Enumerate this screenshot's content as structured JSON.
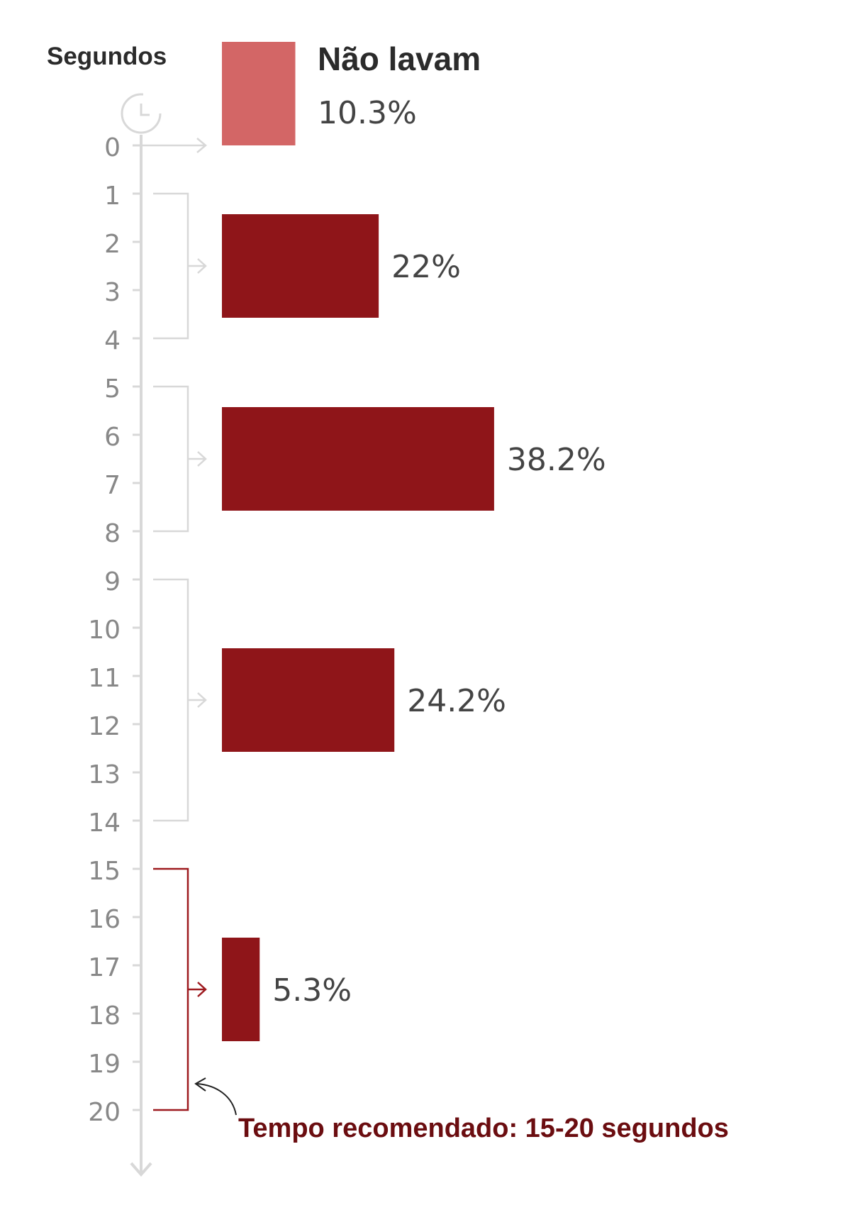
{
  "colors": {
    "bar": "#8f1519",
    "bar_light": "#d36666",
    "axis": "#d8d8d8",
    "tick_label": "#888888",
    "value_label": "#444444",
    "highlight": "#9e1a1f",
    "annotation": "#6b0d10"
  },
  "icons": {
    "clock": "clock-icon",
    "down_arrow": "arrow-down-icon"
  },
  "chart_data": {
    "type": "bar",
    "orientation": "horizontal",
    "title": "",
    "ylabel": "Segundos",
    "xlabel": "",
    "ticks": [
      0,
      1,
      2,
      3,
      4,
      5,
      6,
      7,
      8,
      9,
      10,
      11,
      12,
      13,
      14,
      15,
      16,
      17,
      18,
      19,
      20
    ],
    "ylim": [
      0,
      20
    ],
    "xlim": [
      0,
      100
    ],
    "grid": false,
    "legend": {
      "label": "Não lavam",
      "value_label": "10.3%",
      "placement": "top"
    },
    "bars": [
      {
        "range": [
          0,
          0
        ],
        "value": 10.3,
        "label": "10.3%",
        "style": "light"
      },
      {
        "range": [
          1,
          4
        ],
        "value": 22,
        "label": "22%",
        "style": "dark"
      },
      {
        "range": [
          5,
          8
        ],
        "value": 38.2,
        "label": "38.2%",
        "style": "dark"
      },
      {
        "range": [
          9,
          14
        ],
        "value": 24.2,
        "label": "24.2%",
        "style": "dark"
      },
      {
        "range": [
          15,
          20
        ],
        "value": 5.3,
        "label": "5.3%",
        "style": "dark",
        "highlight": true
      }
    ],
    "annotation": "Tempo recomendado: 15-20 segundos"
  }
}
